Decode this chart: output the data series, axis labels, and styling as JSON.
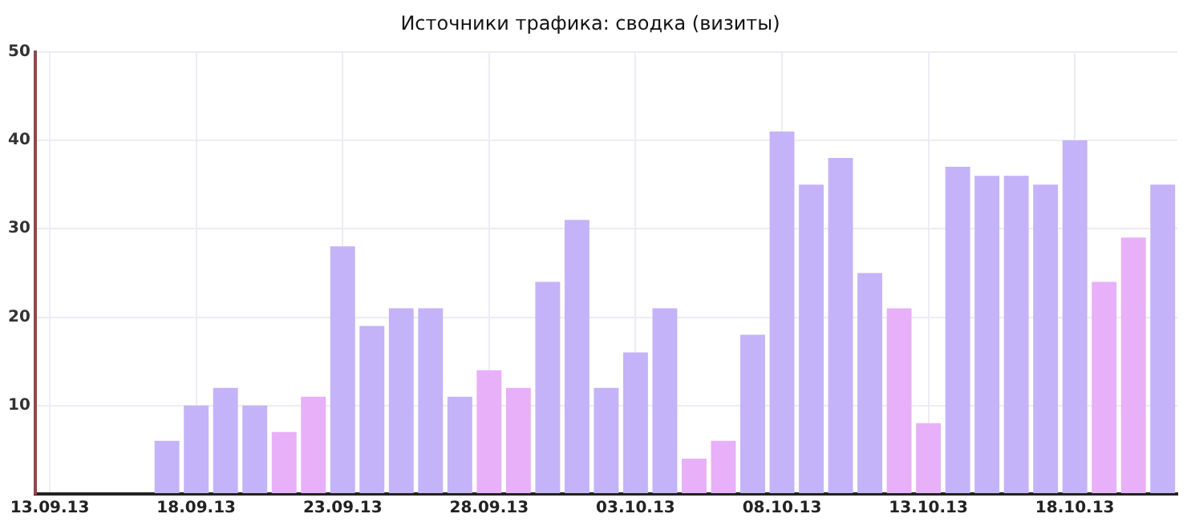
{
  "chart_data": {
    "type": "bar",
    "title": "Источники трафика: сводка (визиты)",
    "categories": [
      "13.09.13",
      null,
      null,
      null,
      null,
      "18.09.13",
      null,
      null,
      null,
      null,
      "23.09.13",
      null,
      null,
      null,
      null,
      "28.09.13",
      null,
      null,
      null,
      null,
      "03.10.13",
      null,
      null,
      null,
      null,
      "08.10.13",
      null,
      null,
      null,
      null,
      "13.10.13",
      null,
      null,
      null,
      null,
      "18.10.13",
      null,
      null,
      null
    ],
    "values": [
      0,
      0,
      0,
      0,
      6,
      10,
      12,
      10,
      7,
      11,
      28,
      19,
      21,
      21,
      11,
      14,
      12,
      24,
      31,
      12,
      16,
      21,
      4,
      6,
      18,
      41,
      35,
      38,
      25,
      21,
      8,
      37,
      36,
      36,
      35,
      40,
      24,
      29,
      35
    ],
    "colors": [
      "#c4b3f8",
      "#c4b3f8",
      "#c4b3f8",
      "#c4b3f8",
      "#c4b3f8",
      "#c4b3f8",
      "#c4b3f8",
      "#c4b3f8",
      "#e8b0f8",
      "#e8b0f8",
      "#c4b3f8",
      "#c4b3f8",
      "#c4b3f8",
      "#c4b3f8",
      "#c4b3f8",
      "#e8b0f8",
      "#e8b0f8",
      "#c4b3f8",
      "#c4b3f8",
      "#c4b3f8",
      "#c4b3f8",
      "#c4b3f8",
      "#e8b0f8",
      "#e8b0f8",
      "#c4b3f8",
      "#c4b3f8",
      "#c4b3f8",
      "#c4b3f8",
      "#c4b3f8",
      "#e8b0f8",
      "#e8b0f8",
      "#c4b3f8",
      "#c4b3f8",
      "#c4b3f8",
      "#c4b3f8",
      "#c4b3f8",
      "#e8b0f8",
      "#e8b0f8",
      "#c4b3f8"
    ],
    "ylim": [
      0,
      50
    ],
    "yticks": [
      {
        "value": 0,
        "label": null
      },
      10,
      20,
      30,
      40,
      50
    ],
    "grid": true,
    "legend": false
  }
}
